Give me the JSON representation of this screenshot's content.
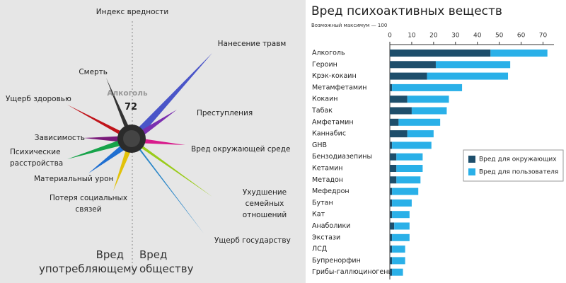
{
  "left_panel": {
    "title": "Индекс вредности",
    "substance": "Алкоголь",
    "score": 72,
    "user_harms": [
      "Смерть",
      "Ущерб здоровью",
      "Зависимость",
      "Психические расстройства",
      "Материальный урон",
      "Потеря социальных связей"
    ],
    "society_harms": [
      "Нанесение травм",
      "Преступления",
      "Вред окружающей среде",
      "Ухудшение семейных отношений",
      "Ущерб государству"
    ],
    "user_side": "Вред употребляющему",
    "society_side": "Вред обществу"
  },
  "chart_data": {
    "type": "stacked_barh",
    "title": "Вред психоактивных веществ",
    "subtitle": "Возможный максимум — 100",
    "categories": [
      "Алкоголь",
      "Героин",
      "Крэк-кокаин",
      "Метамфетамин",
      "Кокаин",
      "Табак",
      "Амфетамин",
      "Каннабис",
      "GHB",
      "Бензодиазепины",
      "Кетамин",
      "Метадон",
      "Мефедрон",
      "Бутан",
      "Кат",
      "Анаболики",
      "Экстази",
      "ЛСД",
      "Бупренорфин",
      "Грибы-галлюциногены"
    ],
    "series": [
      {
        "name": "Вред для окружающих",
        "color": "#1d4e6b",
        "values": [
          46,
          21,
          17,
          1,
          8,
          10,
          4,
          8,
          1,
          3,
          3,
          3,
          1,
          1,
          1,
          2,
          1,
          1,
          1,
          1
        ]
      },
      {
        "name": "Вред для пользователя",
        "color": "#2ab0e8",
        "values": [
          26,
          34,
          37,
          32,
          19,
          16,
          19,
          12,
          18,
          12,
          12,
          11,
          12,
          9,
          8,
          7,
          8,
          6,
          6,
          5
        ]
      }
    ],
    "xlim": [
      0,
      75
    ],
    "xticks": [
      0,
      10,
      20,
      30,
      40,
      50,
      60,
      70
    ],
    "legend": "right"
  }
}
